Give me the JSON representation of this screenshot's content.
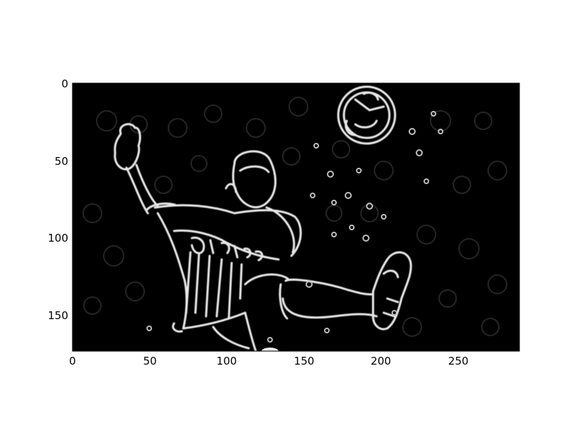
{
  "figure": {
    "kind": "edge-detection image plot",
    "background": "#ffffff",
    "image_background": "#000000",
    "edge_color": "#e8e8e8",
    "frame_color": "#000000"
  },
  "axes": {
    "x_ticks": [
      "0",
      "50",
      "100",
      "150",
      "200",
      "250"
    ],
    "y_ticks": [
      "0",
      "50",
      "100",
      "150"
    ],
    "x_range": [
      0,
      290
    ],
    "y_range": [
      0,
      174
    ]
  },
  "image_content": {
    "subject": "edge-filtered photo of a soccer player kicking a ball",
    "jersey_text": "PHILIPS"
  }
}
